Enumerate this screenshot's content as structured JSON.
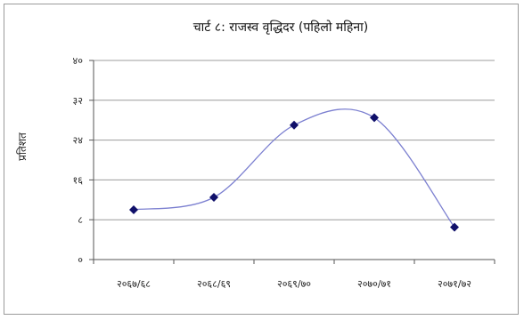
{
  "chart_data": {
    "type": "line",
    "title": "चार्ट ८: राजस्व वृद्धिदर (पहिलो महिना)",
    "xlabel": "",
    "ylabel": "प्रतिशत",
    "categories": [
      "२०६७/६८",
      "२०६८/६९",
      "२०६९/७०",
      "२०७०/७१",
      "२०७१/७२"
    ],
    "series": [
      {
        "values": [
          10,
          12.5,
          27,
          28.5,
          6.5
        ]
      }
    ],
    "ylim": [
      0,
      40
    ],
    "yticks": [
      0,
      8,
      16,
      24,
      32,
      40
    ],
    "ytick_labels": [
      "०",
      "८",
      "१६",
      "२४",
      "३२",
      "४०"
    ],
    "grid": true,
    "legend": "none",
    "line_color": "#7b7fd0",
    "marker_color": "#10106a"
  }
}
